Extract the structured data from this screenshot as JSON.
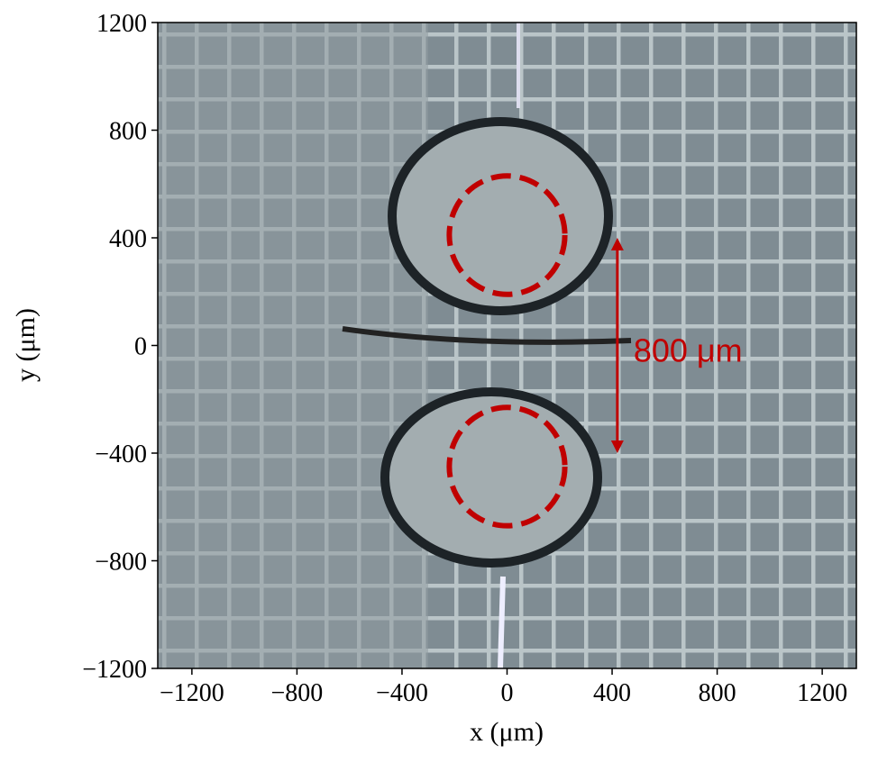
{
  "chart_data": {
    "type": "image",
    "xlabel": "x (μm)",
    "ylabel": "y (μm)",
    "xlim": [
      -1330,
      1330
    ],
    "ylim": [
      -1200,
      1200
    ],
    "xticks": [
      {
        "value": -1200,
        "label": "−1200"
      },
      {
        "value": -800,
        "label": "−800"
      },
      {
        "value": -400,
        "label": "−400"
      },
      0,
      400,
      800,
      1200
    ],
    "yticks": [
      {
        "value": -1200,
        "label": "−1200"
      },
      {
        "value": -800,
        "label": "−800"
      },
      {
        "value": -400,
        "label": "−400"
      },
      0,
      400,
      800,
      1200
    ],
    "circles": [
      {
        "x": 0,
        "y": 410,
        "radius": 220
      },
      {
        "x": 0,
        "y": -450,
        "radius": 220
      }
    ],
    "circle_color": "#c00000",
    "arrow": {
      "x": 420,
      "y": [
        400,
        -400
      ],
      "label": "800 μm"
    }
  }
}
